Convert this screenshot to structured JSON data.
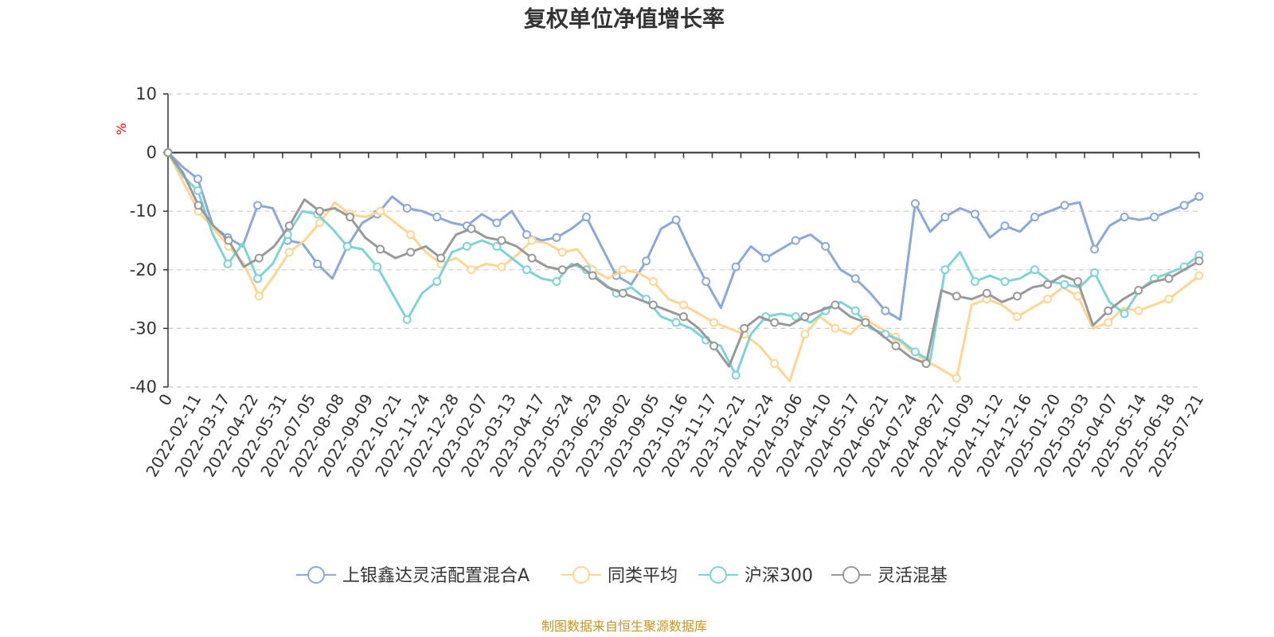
{
  "chart_data": {
    "type": "line",
    "title": "复权单位净值增长率",
    "ylabel": "%",
    "ylim": [
      -40,
      10
    ],
    "yticks": [
      10,
      0,
      -10,
      -20,
      -30,
      -40
    ],
    "grid": true,
    "legend_position": "bottom",
    "source": "制图数据来自恒生聚源数据库",
    "x_tick_labels": [
      "0",
      "2022-02-11",
      "2022-03-17",
      "2022-04-22",
      "2022-05-31",
      "2022-07-05",
      "2022-08-08",
      "2022-09-09",
      "2022-10-21",
      "2022-11-24",
      "2022-12-28",
      "2023-02-07",
      "2023-03-13",
      "2023-04-17",
      "2023-05-24",
      "2023-06-29",
      "2023-08-02",
      "2023-09-05",
      "2023-10-16",
      "2023-11-17",
      "2023-12-21",
      "2024-01-24",
      "2024-03-06",
      "2024-04-10",
      "2024-05-17",
      "2024-06-21",
      "2024-07-24",
      "2024-08-27",
      "2024-10-09",
      "2024-11-12",
      "2024-12-16",
      "2025-01-20",
      "2025-03-03",
      "2025-04-07",
      "2025-05-14",
      "2025-06-18",
      "2025-07-21"
    ],
    "series": [
      {
        "name": "上银鑫达灵活配置混合A",
        "color": "#8aa8d8",
        "values": [
          0,
          -2.5,
          -4.5,
          -12.5,
          -14.5,
          -16,
          -9,
          -9.5,
          -15,
          -15.5,
          -19,
          -21.5,
          -16,
          -12,
          -10.5,
          -7.5,
          -9.5,
          -10,
          -11,
          -12,
          -12.5,
          -10.5,
          -12,
          -10,
          -14,
          -15,
          -14.5,
          -13,
          -11,
          -16,
          -21,
          -22.5,
          -18.5,
          -13,
          -11.5,
          -17,
          -22,
          -26.5,
          -19.5,
          -16,
          -18,
          -16.5,
          -15,
          -14,
          -16,
          -20,
          -21.5,
          -24,
          -27,
          -28.5,
          -8.7,
          -13.5,
          -11,
          -9.5,
          -10.5,
          -14.5,
          -12.5,
          -13.5,
          -11,
          -10,
          -9,
          -8.5,
          -16.5,
          -12.5,
          -11,
          -11.5,
          -11,
          -10,
          -9,
          -7.5
        ]
      },
      {
        "name": "同类平均",
        "color": "#ffd591",
        "values": [
          0,
          -5,
          -10,
          -13,
          -16,
          -19,
          -24.5,
          -21,
          -17,
          -15,
          -12,
          -8.5,
          -10.5,
          -11,
          -10,
          -12,
          -14,
          -17,
          -19,
          -18,
          -20,
          -19,
          -19.5,
          -17.5,
          -15,
          -15.5,
          -17,
          -16.5,
          -20,
          -21.5,
          -20,
          -20.5,
          -22,
          -25,
          -26,
          -27.5,
          -29,
          -30,
          -31,
          -33,
          -36,
          -39,
          -31,
          -28,
          -30,
          -31,
          -28.5,
          -30,
          -31.5,
          -34,
          -35.5,
          -37,
          -38.5,
          -26,
          -25,
          -26,
          -28,
          -26.5,
          -25,
          -23,
          -24.5,
          -30,
          -29,
          -26.5,
          -27,
          -26,
          -25,
          -23,
          -21
        ]
      },
      {
        "name": "沪深300",
        "color": "#7fd3d6",
        "values": [
          0,
          -4,
          -6.5,
          -14,
          -19,
          -15.5,
          -21.5,
          -19,
          -14,
          -10,
          -10.5,
          -13,
          -16,
          -16.5,
          -19.5,
          -24,
          -28.5,
          -24,
          -22,
          -17,
          -16,
          -15,
          -16,
          -18,
          -20,
          -21.5,
          -22,
          -19,
          -20,
          -22,
          -24,
          -23,
          -25,
          -28,
          -29,
          -30,
          -32,
          -33,
          -38,
          -31,
          -28,
          -27.5,
          -28,
          -29,
          -27,
          -25.5,
          -27,
          -30,
          -31,
          -32,
          -34,
          -35.5,
          -20,
          -17,
          -22,
          -21,
          -22,
          -21.5,
          -20,
          -22,
          -22.5,
          -23,
          -20.5,
          -25.5,
          -27.5,
          -23.5,
          -21.5,
          -20.5,
          -19.5,
          -17.5
        ]
      },
      {
        "name": "灵活混基",
        "color": "#999999",
        "values": [
          0,
          -3.5,
          -9,
          -12.5,
          -15,
          -19.5,
          -18,
          -16,
          -12.5,
          -8,
          -10,
          -9.5,
          -11,
          -14.5,
          -16.5,
          -18,
          -17,
          -16,
          -18,
          -14,
          -13,
          -14.5,
          -15,
          -16,
          -18,
          -19.5,
          -20,
          -19,
          -21,
          -23,
          -24,
          -25,
          -26,
          -27,
          -28,
          -30,
          -33,
          -36.5,
          -30,
          -28,
          -29,
          -29.5,
          -28,
          -27,
          -26,
          -28,
          -29,
          -31,
          -33,
          -35,
          -36,
          -23.5,
          -24.5,
          -25,
          -24,
          -25.5,
          -24.5,
          -23,
          -22.5,
          -21,
          -22,
          -29.5,
          -27,
          -25,
          -23.5,
          -22,
          -21.5,
          -20,
          -18.5
        ]
      }
    ]
  }
}
